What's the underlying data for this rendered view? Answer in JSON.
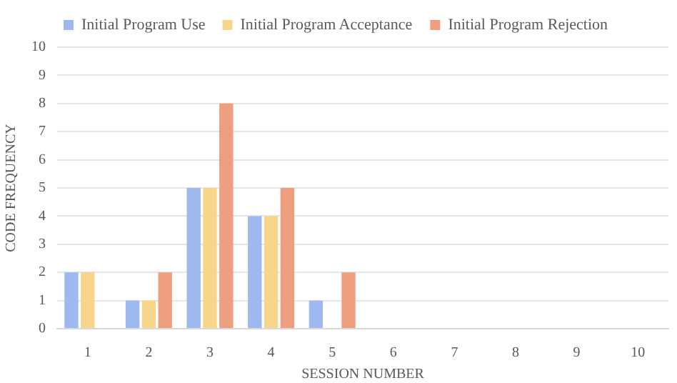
{
  "chart_data": {
    "type": "bar",
    "xlabel": "SESSION NUMBER",
    "ylabel": "CODE FREQUENCY",
    "categories": [
      "1",
      "2",
      "3",
      "4",
      "5",
      "6",
      "7",
      "8",
      "9",
      "10"
    ],
    "series": [
      {
        "name": "Initial Program Use",
        "color": "#9db9f0",
        "values": [
          2,
          1,
          5,
          4,
          1,
          0,
          0,
          0,
          0,
          0
        ]
      },
      {
        "name": "Initial Program Acceptance",
        "color": "#f7d58a",
        "values": [
          2,
          1,
          5,
          4,
          0,
          0,
          0,
          0,
          0,
          0
        ]
      },
      {
        "name": "Initial Program Rejection",
        "color": "#ee9f80",
        "values": [
          0,
          2,
          8,
          5,
          2,
          0,
          0,
          0,
          0,
          0
        ]
      }
    ],
    "ylim": [
      0,
      10
    ],
    "yticks": [
      0,
      1,
      2,
      3,
      4,
      5,
      6,
      7,
      8,
      9,
      10
    ],
    "grid": "y",
    "legend": "top"
  }
}
